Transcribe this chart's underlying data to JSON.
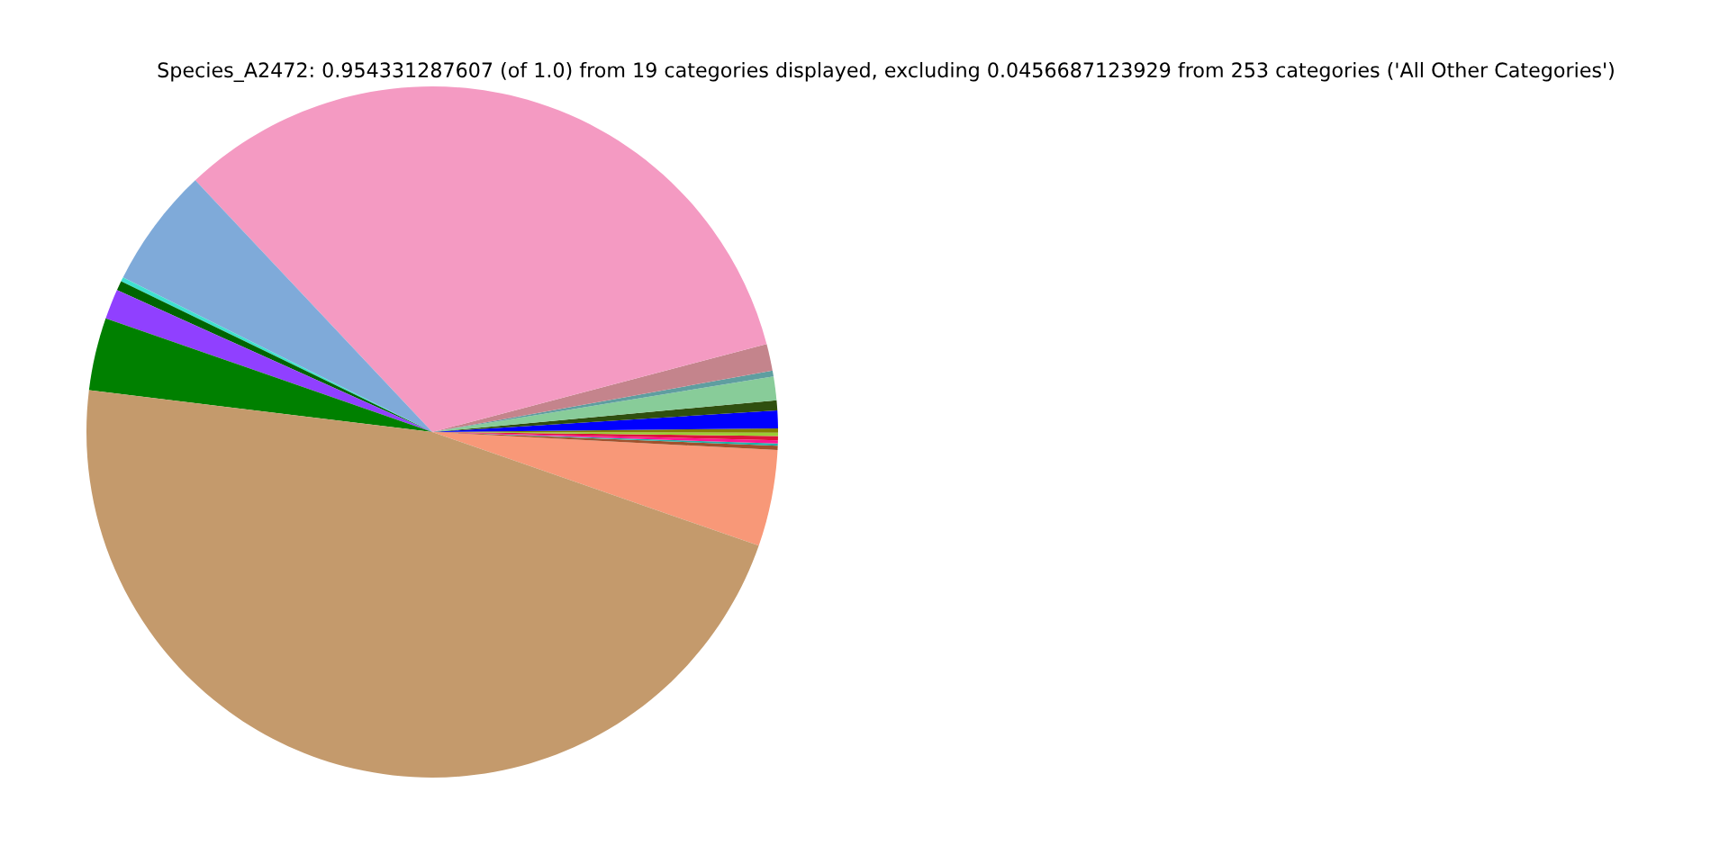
{
  "chart_data": {
    "type": "pie",
    "title": "Species_A2472: 0.954331287607 (of 1.0) from 19 categories displayed, excluding 0.0456687123929 from 253 categories ('All Other Categories')",
    "categories": [
      null,
      null,
      null,
      null,
      null,
      null,
      null,
      null,
      null,
      null,
      null,
      null,
      null,
      null,
      null,
      null,
      null,
      null,
      null
    ],
    "values": [
      4.5,
      0.2,
      0.1,
      0.15,
      0.2,
      0.15,
      0.2,
      0.83,
      0.47,
      1.1,
      0.28,
      1.25,
      32.92,
      5.6,
      0.2,
      0.45,
      1.4,
      3.4,
      46.6
    ],
    "colors": [
      "#f89878",
      "#a0522d",
      "#20b2aa",
      "#ff1493",
      "#dc143c",
      "#9acd32",
      "#808000",
      "#0000ff",
      "#2f4f0f",
      "#88cc99",
      "#5f9ea0",
      "#c4848c",
      "#f49ac2",
      "#7faad9",
      "#40e0d0",
      "#006400",
      "#9040ff",
      "#008000",
      "#c49a6c"
    ],
    "legend": false
  }
}
